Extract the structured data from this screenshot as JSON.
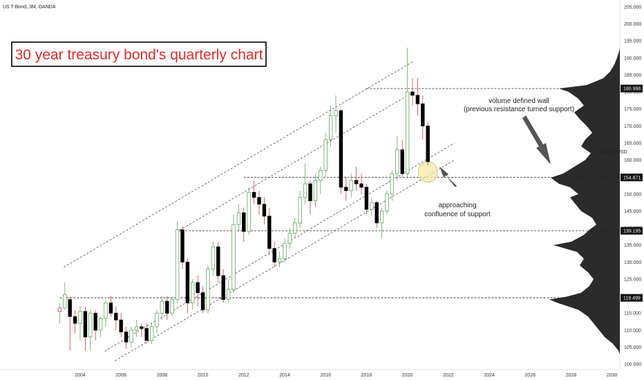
{
  "header": {
    "symbol_info": "US T-Bond, 3M, OANDA"
  },
  "title": "30 year treasury bond's quarterly chart",
  "symbol_tag": "USB30YUSD",
  "annotations": {
    "volume_wall_line1": "volume defined wall",
    "volume_wall_line2": "(previous resistance turned support)",
    "support_line1": "approaching",
    "support_line2": "confluence of support"
  },
  "colors": {
    "up_candle": "#5aa95a",
    "down_candle": "#000000",
    "highlight": "#f5e9a6",
    "price_tag_bg": "#111111",
    "title_border": "#000000",
    "volume_profile": "#2b2b2b"
  },
  "chart_data": {
    "type": "candlestick",
    "timeframe": "3M",
    "y_axis": {
      "ticks": [
        "100.000",
        "105.000",
        "110.000",
        "115.000",
        "120.000",
        "125.000",
        "130.000",
        "135.000",
        "140.000",
        "145.000",
        "150.000",
        "155.000",
        "160.000",
        "165.000",
        "170.000",
        "175.000",
        "180.000",
        "185.000",
        "190.000",
        "195.000",
        "200.000",
        "205.000"
      ],
      "ylim": [
        98,
        207
      ]
    },
    "x_axis": {
      "ticks": [
        "2004",
        "2006",
        "2008",
        "2010",
        "2012",
        "2014",
        "2016",
        "2018",
        "2020",
        "2022",
        "2024",
        "2026",
        "2028",
        "2030"
      ],
      "xlim": [
        2002.2,
        2030.2
      ]
    },
    "price_tags": [
      {
        "label": "180.998",
        "value": 181.0
      },
      {
        "label": "154.871",
        "value": 154.87
      },
      {
        "label": "139.195",
        "value": 139.2
      },
      {
        "label": "119.499",
        "value": 119.5
      }
    ],
    "horizontal_levels": [
      {
        "value": 181.0,
        "from": 2018.0
      },
      {
        "value": 154.87,
        "from": 2012.0
      },
      {
        "value": 139.2,
        "from": 2008.8
      },
      {
        "value": 119.5,
        "from": 2003.0
      }
    ],
    "channel_lines": [
      {
        "x1": 2003.2,
        "y1": 128.5,
        "x2": 2020.3,
        "y2": 189.0
      },
      {
        "x1": 2008.7,
        "y1": 138.8,
        "x2": 2020.3,
        "y2": 180.0
      },
      {
        "x1": 2005.2,
        "y1": 103.8,
        "x2": 2022.3,
        "y2": 165.0
      },
      {
        "x1": 2005.7,
        "y1": 101.0,
        "x2": 2022.3,
        "y2": 160.0
      }
    ],
    "highlight_circle": {
      "x": 2021.0,
      "y": 156.5
    },
    "candles": [
      {
        "t": 2003.0,
        "o": 115.5,
        "h": 118.0,
        "l": 112.0,
        "c": 116.5
      },
      {
        "t": 2003.25,
        "o": 116.5,
        "h": 124.0,
        "l": 116.0,
        "c": 120.5
      },
      {
        "t": 2003.5,
        "o": 119.0,
        "h": 120.0,
        "l": 104.0,
        "c": 114.0
      },
      {
        "t": 2003.75,
        "o": 114.0,
        "h": 116.0,
        "l": 109.0,
        "c": 112.0
      },
      {
        "t": 2004.0,
        "o": 112.0,
        "h": 117.0,
        "l": 107.0,
        "c": 115.5
      },
      {
        "t": 2004.25,
        "o": 115.5,
        "h": 117.0,
        "l": 104.0,
        "c": 108.0
      },
      {
        "t": 2004.5,
        "o": 108.0,
        "h": 116.0,
        "l": 104.0,
        "c": 115.0
      },
      {
        "t": 2004.75,
        "o": 115.0,
        "h": 116.0,
        "l": 107.0,
        "c": 110.0
      },
      {
        "t": 2005.0,
        "o": 110.0,
        "h": 114.0,
        "l": 108.0,
        "c": 113.5
      },
      {
        "t": 2005.25,
        "o": 113.5,
        "h": 119.0,
        "l": 111.0,
        "c": 118.0
      },
      {
        "t": 2005.5,
        "o": 118.0,
        "h": 120.0,
        "l": 114.0,
        "c": 115.0
      },
      {
        "t": 2005.75,
        "o": 115.0,
        "h": 117.0,
        "l": 110.0,
        "c": 113.0
      },
      {
        "t": 2006.0,
        "o": 113.0,
        "h": 115.0,
        "l": 108.0,
        "c": 109.5
      },
      {
        "t": 2006.25,
        "o": 109.5,
        "h": 111.0,
        "l": 104.5,
        "c": 106.5
      },
      {
        "t": 2006.5,
        "o": 106.5,
        "h": 111.0,
        "l": 105.0,
        "c": 110.0
      },
      {
        "t": 2006.75,
        "o": 110.0,
        "h": 113.0,
        "l": 108.0,
        "c": 111.0
      },
      {
        "t": 2007.0,
        "o": 111.0,
        "h": 112.0,
        "l": 108.0,
        "c": 110.5
      },
      {
        "t": 2007.25,
        "o": 110.5,
        "h": 112.0,
        "l": 106.0,
        "c": 107.0
      },
      {
        "t": 2007.5,
        "o": 107.0,
        "h": 112.0,
        "l": 106.0,
        "c": 111.0
      },
      {
        "t": 2007.75,
        "o": 111.0,
        "h": 116.0,
        "l": 109.0,
        "c": 115.0
      },
      {
        "t": 2008.0,
        "o": 115.0,
        "h": 120.0,
        "l": 113.0,
        "c": 118.5
      },
      {
        "t": 2008.25,
        "o": 118.5,
        "h": 120.0,
        "l": 113.0,
        "c": 115.0
      },
      {
        "t": 2008.5,
        "o": 115.0,
        "h": 120.0,
        "l": 114.0,
        "c": 119.0
      },
      {
        "t": 2008.75,
        "o": 119.0,
        "h": 142.0,
        "l": 118.0,
        "c": 139.5
      },
      {
        "t": 2009.0,
        "o": 139.5,
        "h": 140.5,
        "l": 128.0,
        "c": 130.0
      },
      {
        "t": 2009.25,
        "o": 130.0,
        "h": 131.0,
        "l": 115.0,
        "c": 118.0
      },
      {
        "t": 2009.5,
        "o": 118.0,
        "h": 125.0,
        "l": 116.0,
        "c": 124.0
      },
      {
        "t": 2009.75,
        "o": 124.0,
        "h": 126.0,
        "l": 117.0,
        "c": 121.0
      },
      {
        "t": 2010.0,
        "o": 121.0,
        "h": 123.0,
        "l": 115.0,
        "c": 116.0
      },
      {
        "t": 2010.25,
        "o": 116.0,
        "h": 129.0,
        "l": 115.0,
        "c": 128.0
      },
      {
        "t": 2010.5,
        "o": 128.0,
        "h": 136.0,
        "l": 126.0,
        "c": 134.5
      },
      {
        "t": 2010.75,
        "o": 134.5,
        "h": 136.0,
        "l": 124.0,
        "c": 126.0
      },
      {
        "t": 2011.0,
        "o": 126.0,
        "h": 128.0,
        "l": 118.0,
        "c": 119.0
      },
      {
        "t": 2011.25,
        "o": 119.0,
        "h": 125.0,
        "l": 118.0,
        "c": 122.0
      },
      {
        "t": 2011.5,
        "o": 122.0,
        "h": 144.0,
        "l": 121.0,
        "c": 141.0
      },
      {
        "t": 2011.75,
        "o": 141.0,
        "h": 147.0,
        "l": 139.0,
        "c": 144.5
      },
      {
        "t": 2012.0,
        "o": 144.5,
        "h": 146.0,
        "l": 136.0,
        "c": 139.0
      },
      {
        "t": 2012.25,
        "o": 139.0,
        "h": 152.0,
        "l": 138.0,
        "c": 150.5
      },
      {
        "t": 2012.5,
        "o": 150.5,
        "h": 154.0,
        "l": 147.0,
        "c": 149.0
      },
      {
        "t": 2012.75,
        "o": 149.0,
        "h": 151.0,
        "l": 144.0,
        "c": 147.0
      },
      {
        "t": 2013.0,
        "o": 147.0,
        "h": 149.0,
        "l": 141.0,
        "c": 143.5
      },
      {
        "t": 2013.25,
        "o": 143.5,
        "h": 146.0,
        "l": 132.0,
        "c": 134.0
      },
      {
        "t": 2013.5,
        "o": 134.0,
        "h": 136.0,
        "l": 128.5,
        "c": 130.0
      },
      {
        "t": 2013.75,
        "o": 130.0,
        "h": 133.0,
        "l": 128.5,
        "c": 131.0
      },
      {
        "t": 2014.0,
        "o": 131.0,
        "h": 137.0,
        "l": 130.0,
        "c": 135.5
      },
      {
        "t": 2014.25,
        "o": 135.5,
        "h": 140.0,
        "l": 134.0,
        "c": 138.5
      },
      {
        "t": 2014.5,
        "o": 138.5,
        "h": 143.0,
        "l": 137.0,
        "c": 141.5
      },
      {
        "t": 2014.75,
        "o": 141.5,
        "h": 151.0,
        "l": 140.0,
        "c": 149.0
      },
      {
        "t": 2015.0,
        "o": 149.0,
        "h": 159.0,
        "l": 147.0,
        "c": 153.0
      },
      {
        "t": 2015.25,
        "o": 153.0,
        "h": 154.0,
        "l": 144.0,
        "c": 148.0
      },
      {
        "t": 2015.5,
        "o": 148.0,
        "h": 156.0,
        "l": 146.0,
        "c": 154.0
      },
      {
        "t": 2015.75,
        "o": 154.0,
        "h": 158.0,
        "l": 150.0,
        "c": 157.0
      },
      {
        "t": 2016.0,
        "o": 157.0,
        "h": 168.0,
        "l": 155.0,
        "c": 166.0
      },
      {
        "t": 2016.25,
        "o": 166.0,
        "h": 176.0,
        "l": 164.0,
        "c": 173.0
      },
      {
        "t": 2016.5,
        "o": 173.0,
        "h": 179.0,
        "l": 168.0,
        "c": 174.5
      },
      {
        "t": 2016.75,
        "o": 174.5,
        "h": 175.0,
        "l": 150.0,
        "c": 152.0
      },
      {
        "t": 2017.0,
        "o": 152.0,
        "h": 155.0,
        "l": 148.0,
        "c": 151.0
      },
      {
        "t": 2017.25,
        "o": 151.0,
        "h": 156.0,
        "l": 149.0,
        "c": 154.0
      },
      {
        "t": 2017.5,
        "o": 154.0,
        "h": 158.0,
        "l": 151.0,
        "c": 153.0
      },
      {
        "t": 2017.75,
        "o": 153.0,
        "h": 156.0,
        "l": 150.0,
        "c": 152.0
      },
      {
        "t": 2018.0,
        "o": 152.0,
        "h": 153.0,
        "l": 144.0,
        "c": 145.5
      },
      {
        "t": 2018.25,
        "o": 145.5,
        "h": 149.0,
        "l": 143.5,
        "c": 147.5
      },
      {
        "t": 2018.5,
        "o": 147.5,
        "h": 148.0,
        "l": 140.0,
        "c": 141.5
      },
      {
        "t": 2018.75,
        "o": 141.5,
        "h": 146.0,
        "l": 137.0,
        "c": 145.0
      },
      {
        "t": 2019.0,
        "o": 145.0,
        "h": 151.0,
        "l": 144.0,
        "c": 150.0
      },
      {
        "t": 2019.25,
        "o": 150.0,
        "h": 157.0,
        "l": 148.0,
        "c": 156.0
      },
      {
        "t": 2019.5,
        "o": 156.0,
        "h": 167.0,
        "l": 154.0,
        "c": 163.0
      },
      {
        "t": 2019.75,
        "o": 163.0,
        "h": 166.0,
        "l": 155.0,
        "c": 156.0
      },
      {
        "t": 2020.0,
        "o": 156.0,
        "h": 193.0,
        "l": 155.0,
        "c": 180.0
      },
      {
        "t": 2020.25,
        "o": 180.0,
        "h": 184.0,
        "l": 176.0,
        "c": 179.0
      },
      {
        "t": 2020.5,
        "o": 179.0,
        "h": 184.0,
        "l": 173.0,
        "c": 176.5
      },
      {
        "t": 2020.75,
        "o": 176.5,
        "h": 179.0,
        "l": 166.0,
        "c": 170.0
      },
      {
        "t": 2021.0,
        "o": 170.0,
        "h": 171.0,
        "l": 158.5,
        "c": 159.5
      }
    ]
  }
}
